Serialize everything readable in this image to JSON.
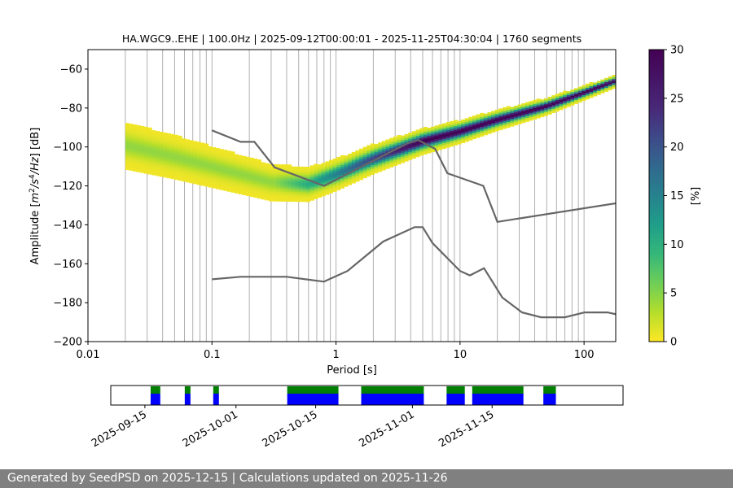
{
  "chart_data": {
    "type": "heatmap",
    "title": "HA.WGC9..EHE | 100.0Hz | 2025-09-12T00:00:01 - 2025-11-25T04:30:04 | 1760 segments",
    "xlabel": "Period [s]",
    "ylabel": "Amplitude [m²/s⁴/Hz] [dB]",
    "x_scale": "log",
    "xlim": [
      0.01,
      180
    ],
    "ylim": [
      -200,
      -50
    ],
    "x_tick_labels": [
      "0.01",
      "0.1",
      "1",
      "10",
      "100"
    ],
    "y_ticks": [
      -200,
      -180,
      -160,
      -140,
      -120,
      -100,
      -80,
      -60
    ],
    "y_tick_labels": [
      "−200",
      "−180",
      "−160",
      "−140",
      "−120",
      "−100",
      "−80",
      "−60"
    ],
    "grid": "vertical",
    "colorbar": {
      "label": "[%]",
      "range": [
        0,
        30
      ],
      "ticks": [
        "0",
        "5",
        "10",
        "15",
        "20",
        "25",
        "30"
      ],
      "colormap": "viridis_r"
    },
    "noise_models": [
      {
        "period": [
          0.1,
          0.17,
          0.22,
          0.32,
          0.8,
          3.8,
          4.6,
          6.3,
          7.9,
          15.4,
          20,
          354.8
        ],
        "db": [
          -91.5,
          -97.4,
          -97.4,
          -110.5,
          -120,
          -98,
          -96.5,
          -101,
          -113.5,
          -120,
          -138.5,
          -126
        ]
      },
      {
        "period": [
          0.1,
          0.17,
          0.4,
          0.8,
          1.24,
          2.4,
          4.3,
          5.0,
          6.0,
          10.0,
          12.0,
          15.6,
          21.9,
          31.6,
          45.0,
          70.0,
          101.0,
          154.0,
          180.0
        ],
        "db": [
          -168,
          -166.7,
          -166.7,
          -169.2,
          -163.7,
          -148.6,
          -141.2,
          -141.2,
          -149.4,
          -163.7,
          -166,
          -162.3,
          -177.3,
          -185,
          -187.5,
          -187.5,
          -185,
          -185,
          -185.9
        ]
      }
    ],
    "psd_mode_trend": {
      "period": [
        0.02,
        0.05,
        0.1,
        0.2,
        0.3,
        0.6,
        1.0,
        2.0,
        5.0,
        10.0,
        20.0,
        50.0,
        100.0,
        180.0
      ],
      "db": [
        -99,
        -105,
        -110,
        -115,
        -118,
        -119,
        -114,
        -106,
        -97,
        -92,
        -86,
        -79,
        -72,
        -66
      ]
    },
    "availability": {
      "date_tick_labels": [
        "2025-09-15",
        "2025-10-01",
        "2025-10-15",
        "2025-11-01",
        "2025-11-15"
      ],
      "colors": {
        "available": "#008000",
        "gaps": "#0000ff"
      },
      "segments": [
        [
          "2025-09-16",
          "2025-09-17.7"
        ],
        [
          "2025-09-22",
          "2025-09-23"
        ],
        [
          "2025-09-27",
          "2025-09-28"
        ],
        [
          "2025-10-10",
          "2025-10-19"
        ],
        [
          "2025-10-23",
          "2025-11-03"
        ],
        [
          "2025-11-07",
          "2025-11-10.2"
        ],
        [
          "2025-11-11.5",
          "2025-11-20.5"
        ],
        [
          "2025-11-24",
          "2025-11-26.2"
        ]
      ]
    }
  },
  "footer": {
    "text": "Generated by SeedPSD on 2025-12-15 | Calculations updated on 2025-11-26"
  }
}
